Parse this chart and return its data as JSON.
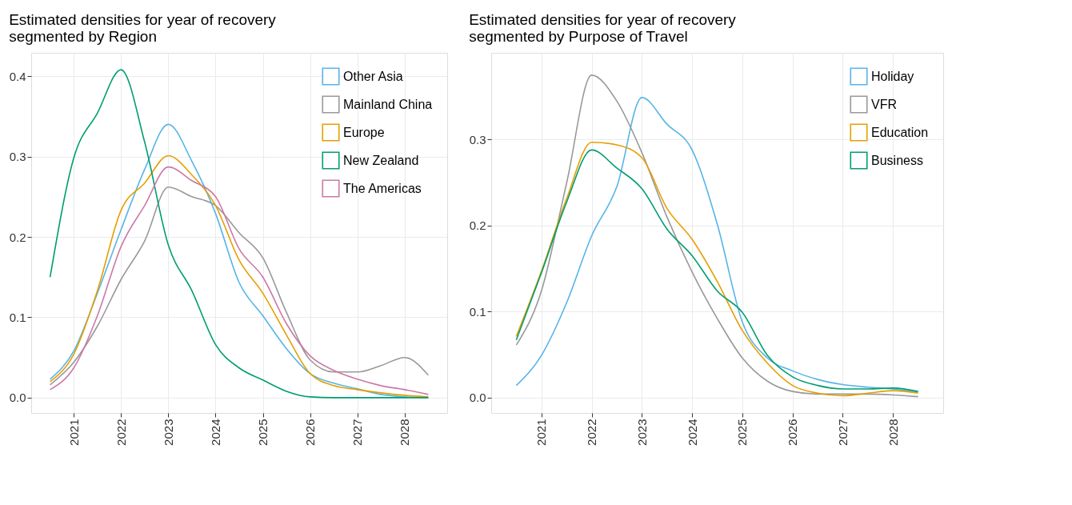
{
  "chart_data": [
    {
      "type": "line",
      "title": "Estimated densities for year of recovery\nsegmented by Region",
      "x": [
        2020.5,
        2021,
        2021.5,
        2022,
        2022.5,
        2023,
        2023.5,
        2024,
        2024.5,
        2025,
        2025.5,
        2026,
        2026.5,
        2027,
        2027.5,
        2028,
        2028.5
      ],
      "series": [
        {
          "name": "Other Asia",
          "color": "#56b4e9",
          "values": [
            0.023,
            0.058,
            0.13,
            0.209,
            0.284,
            0.34,
            0.294,
            0.229,
            0.143,
            0.102,
            0.061,
            0.03,
            0.018,
            0.011,
            0.004,
            0.001,
            0.0
          ]
        },
        {
          "name": "Mainland China",
          "color": "#999999",
          "values": [
            0.016,
            0.044,
            0.089,
            0.147,
            0.195,
            0.262,
            0.25,
            0.239,
            0.205,
            0.174,
            0.106,
            0.047,
            0.032,
            0.032,
            0.04,
            0.05,
            0.028
          ]
        },
        {
          "name": "Europe",
          "color": "#e69f00",
          "values": [
            0.02,
            0.054,
            0.133,
            0.233,
            0.267,
            0.301,
            0.277,
            0.239,
            0.171,
            0.13,
            0.078,
            0.03,
            0.015,
            0.01,
            0.006,
            0.003,
            0.001
          ]
        },
        {
          "name": "New Zealand",
          "color": "#009e73",
          "values": [
            0.15,
            0.298,
            0.354,
            0.408,
            0.318,
            0.19,
            0.133,
            0.066,
            0.037,
            0.022,
            0.008,
            0.001,
            0.0,
            0.0,
            0.0,
            0.0,
            0.0
          ]
        },
        {
          "name": "The Americas",
          "color": "#cc79a7",
          "values": [
            0.01,
            0.037,
            0.102,
            0.188,
            0.239,
            0.287,
            0.27,
            0.25,
            0.185,
            0.15,
            0.092,
            0.052,
            0.034,
            0.023,
            0.015,
            0.01,
            0.004
          ]
        }
      ],
      "xlim": [
        2020.1,
        2028.9
      ],
      "xticks": [
        2021,
        2022,
        2023,
        2024,
        2025,
        2026,
        2027,
        2028
      ],
      "ylim": [
        -0.019,
        0.429
      ],
      "yticks": [
        {
          "value": 0,
          "label": "0.0"
        },
        0.1,
        0.2,
        0.3,
        0.4
      ],
      "grid": true,
      "legend": "top right"
    },
    {
      "type": "line",
      "title": "Estimated densities for year of recovery\nsegmented by Purpose of Travel",
      "x": [
        2020.5,
        2021,
        2021.5,
        2022,
        2022.5,
        2023,
        2023.5,
        2024,
        2024.5,
        2025,
        2025.5,
        2026,
        2026.5,
        2027,
        2027.5,
        2028,
        2028.5
      ],
      "series": [
        {
          "name": "Holiday",
          "color": "#56b4e9",
          "values": [
            0.014,
            0.049,
            0.11,
            0.188,
            0.245,
            0.349,
            0.318,
            0.288,
            0.202,
            0.088,
            0.046,
            0.031,
            0.021,
            0.015,
            0.012,
            0.01,
            0.006
          ]
        },
        {
          "name": "VFR",
          "color": "#999999",
          "values": [
            0.061,
            0.124,
            0.249,
            0.375,
            0.345,
            0.285,
            0.21,
            0.146,
            0.092,
            0.046,
            0.019,
            0.007,
            0.004,
            0.004,
            0.004,
            0.003,
            0.001
          ]
        },
        {
          "name": "Education",
          "color": "#e69f00",
          "values": [
            0.071,
            0.147,
            0.231,
            0.297,
            0.294,
            0.279,
            0.22,
            0.184,
            0.135,
            0.078,
            0.04,
            0.014,
            0.005,
            0.002,
            0.005,
            0.008,
            0.005
          ]
        },
        {
          "name": "Business",
          "color": "#009e73",
          "values": [
            0.067,
            0.145,
            0.227,
            0.288,
            0.267,
            0.243,
            0.196,
            0.165,
            0.124,
            0.099,
            0.049,
            0.024,
            0.014,
            0.01,
            0.01,
            0.011,
            0.007
          ]
        }
      ],
      "xlim": [
        2020.0,
        2029.0
      ],
      "xticks": [
        2021,
        2022,
        2023,
        2024,
        2025,
        2026,
        2027,
        2028
      ],
      "ylim": [
        -0.018,
        0.401
      ],
      "yticks": [
        {
          "value": 0,
          "label": "0.0"
        },
        0.1,
        0.2,
        0.3
      ],
      "grid": true,
      "legend": "top right"
    }
  ]
}
